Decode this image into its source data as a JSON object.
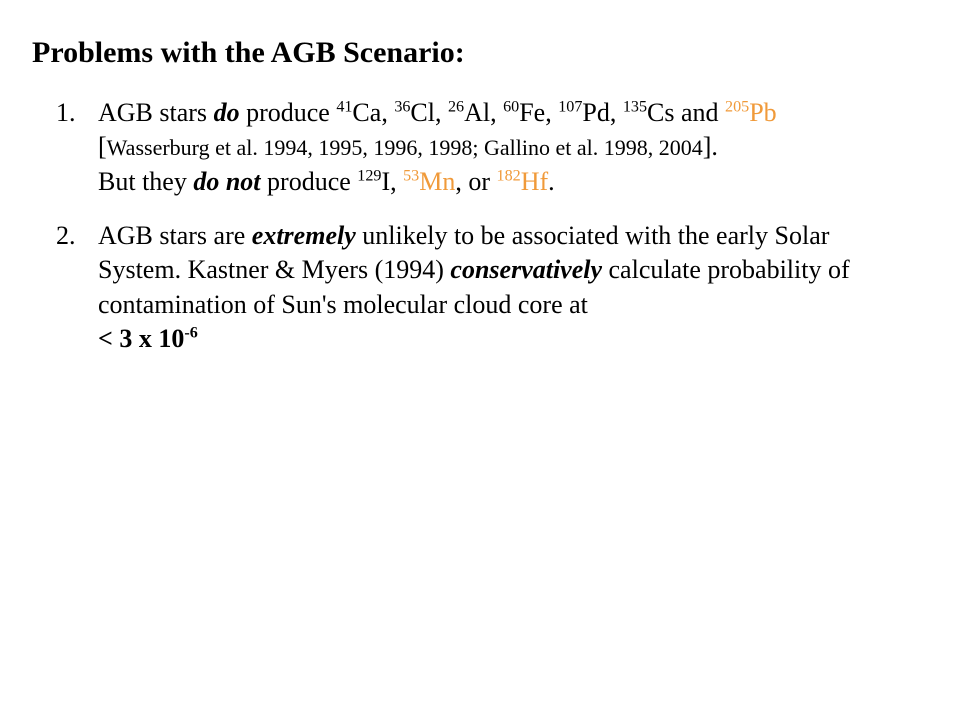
{
  "title": "Problems with the AGB Scenario:",
  "items": [
    {
      "pre": "AGB stars ",
      "emph_do": "do",
      "after_do": " produce ",
      "iso1_sup": "41",
      "iso1_sym": "Ca",
      "iso2_sup": "36",
      "iso2_sym": "Cl",
      "iso3_sup": "26",
      "iso3_sym": "Al",
      "iso4_sup": "60",
      "iso4_sym": "Fe",
      "iso5_sup": "107",
      "iso5_sym": "Pd",
      "iso6_sup": "135",
      "iso6_sym": "Cs",
      "and1": " and ",
      "iso7_sup": "205",
      "iso7_sym": "Pb",
      "refs": "Wasserburg et al. 1994, 1995, 1996, 1998; Gallino et al. 1998, 2004",
      "line2_pre": "But they ",
      "emph_donot": "do not",
      "line2_after": " produce ",
      "niso1_sup": "129",
      "niso1_sym": "I",
      "niso2_sup": "53",
      "niso2_sym": "Mn",
      "or": ", or ",
      "niso3_sup": "182",
      "niso3_sym": "Hf",
      "period": "."
    },
    {
      "p1": "AGB stars are ",
      "emph_ext": "extremely",
      "p2": " unlikely to be associated with the early Solar System.  Kastner & Myers (1994) ",
      "emph_cons": "conservatively",
      "p3": " calculate probability of contamination of Sun's molecular cloud core at ",
      "bound_pre": "< 3 x 10",
      "bound_exp": "-6"
    }
  ],
  "colors": {
    "orange": "#f09a3a",
    "text": "#000000",
    "background": "#ffffff"
  }
}
